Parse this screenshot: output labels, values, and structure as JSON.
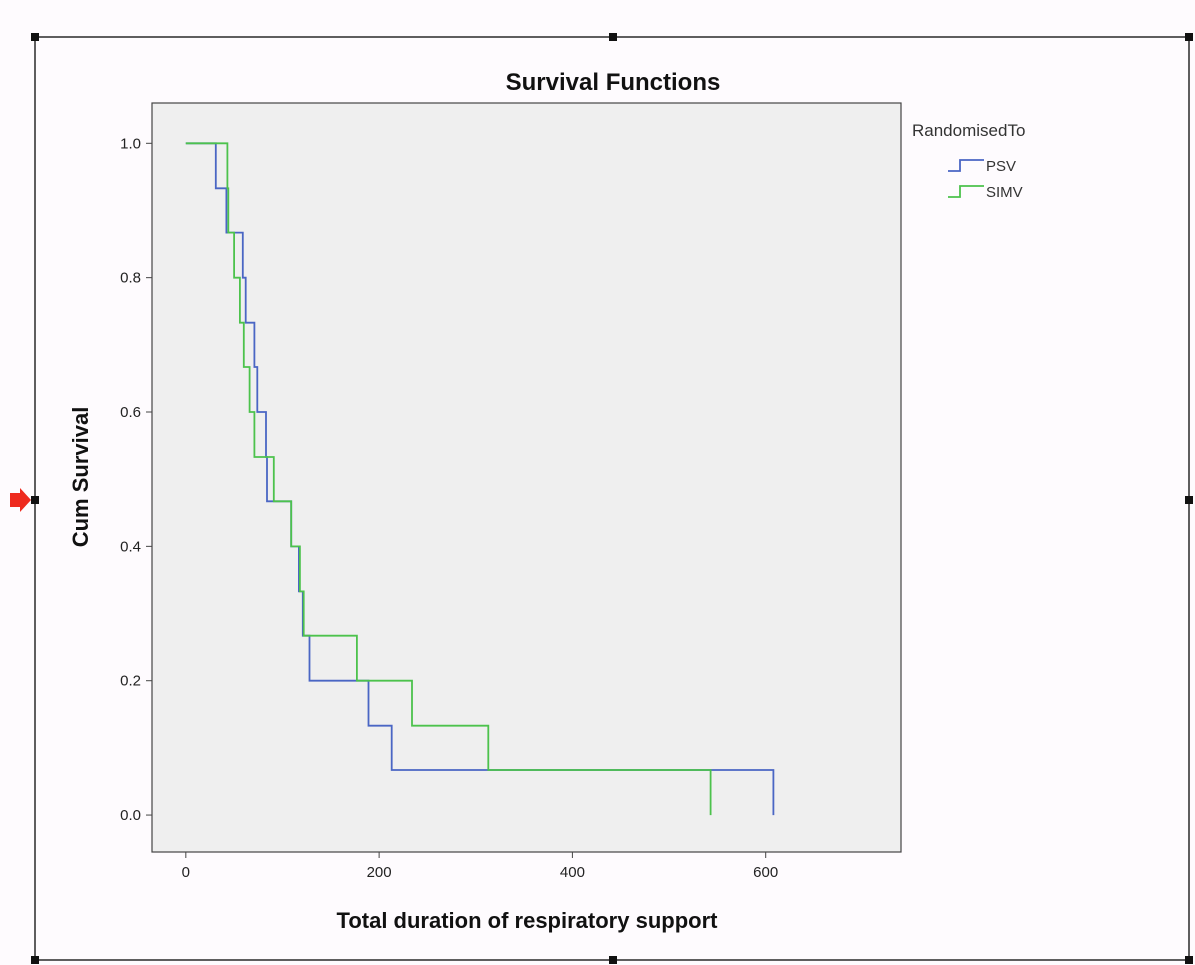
{
  "chart_data": {
    "type": "line",
    "subtype": "kaplan-meier step",
    "title": "Survival Functions",
    "xlabel": "Total duration of respiratory support",
    "ylabel": "Cum Survival",
    "xlim": [
      -35,
      740
    ],
    "ylim": [
      -0.055,
      1.06
    ],
    "xticks": [
      0,
      200,
      400,
      600
    ],
    "yticks": [
      0.0,
      0.2,
      0.4,
      0.6,
      0.8,
      1.0
    ],
    "ytick_labels": [
      "0.0",
      "0.2",
      "0.4",
      "0.6",
      "0.8",
      "1.0"
    ],
    "grid": false,
    "legend_title": "RandomisedTo",
    "legend_position": "right, outside plot",
    "plot_background": "#efefef",
    "series": [
      {
        "name": "PSV",
        "color": "#4a66c4",
        "points": [
          [
            0,
            1.0
          ],
          [
            31,
            1.0
          ],
          [
            31,
            0.933
          ],
          [
            42,
            0.933
          ],
          [
            42,
            0.867
          ],
          [
            59,
            0.867
          ],
          [
            59,
            0.8
          ],
          [
            62,
            0.8
          ],
          [
            62,
            0.733
          ],
          [
            71,
            0.733
          ],
          [
            71,
            0.667
          ],
          [
            74,
            0.667
          ],
          [
            74,
            0.6
          ],
          [
            83,
            0.6
          ],
          [
            83,
            0.533
          ],
          [
            84,
            0.533
          ],
          [
            84,
            0.467
          ],
          [
            109,
            0.467
          ],
          [
            109,
            0.4
          ],
          [
            117,
            0.4
          ],
          [
            117,
            0.333
          ],
          [
            121,
            0.333
          ],
          [
            121,
            0.267
          ],
          [
            128,
            0.267
          ],
          [
            128,
            0.2
          ],
          [
            189,
            0.2
          ],
          [
            189,
            0.133
          ],
          [
            213,
            0.133
          ],
          [
            213,
            0.067
          ],
          [
            608,
            0.067
          ],
          [
            608,
            0.0
          ]
        ]
      },
      {
        "name": "SIMV",
        "color": "#4cc24c",
        "points": [
          [
            0,
            1.0
          ],
          [
            43,
            1.0
          ],
          [
            43,
            0.933
          ],
          [
            44,
            0.933
          ],
          [
            44,
            0.867
          ],
          [
            50,
            0.867
          ],
          [
            50,
            0.8
          ],
          [
            56,
            0.8
          ],
          [
            56,
            0.733
          ],
          [
            60,
            0.733
          ],
          [
            60,
            0.667
          ],
          [
            66,
            0.667
          ],
          [
            66,
            0.6
          ],
          [
            71,
            0.6
          ],
          [
            71,
            0.533
          ],
          [
            91,
            0.533
          ],
          [
            91,
            0.467
          ],
          [
            109,
            0.467
          ],
          [
            109,
            0.4
          ],
          [
            118,
            0.4
          ],
          [
            118,
            0.333
          ],
          [
            122,
            0.333
          ],
          [
            122,
            0.267
          ],
          [
            177,
            0.267
          ],
          [
            177,
            0.2
          ],
          [
            234,
            0.2
          ],
          [
            234,
            0.133
          ],
          [
            313,
            0.133
          ],
          [
            313,
            0.067
          ],
          [
            543,
            0.067
          ],
          [
            543,
            0.0
          ]
        ]
      }
    ]
  },
  "ui": {
    "frame_color": "#2a2a2a",
    "marker_color": "#ee2a1e"
  }
}
